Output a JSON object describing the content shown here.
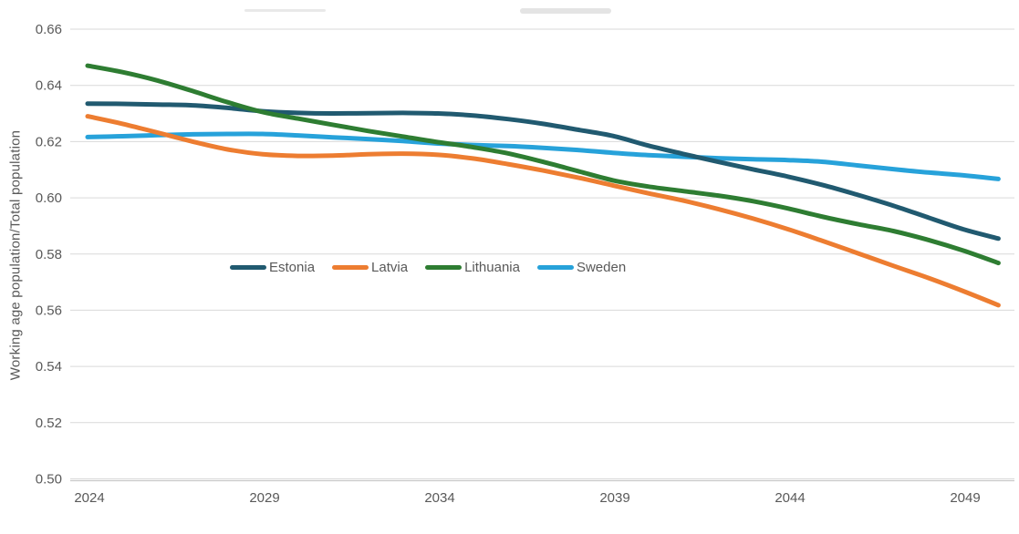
{
  "chart_data": {
    "type": "line",
    "title": "",
    "xlabel": "",
    "ylabel": "Working age population/Total population",
    "x": [
      2024,
      2025,
      2026,
      2027,
      2028,
      2029,
      2030,
      2031,
      2032,
      2033,
      2034,
      2035,
      2036,
      2037,
      2038,
      2039,
      2040,
      2041,
      2042,
      2043,
      2044,
      2045,
      2046,
      2047,
      2048,
      2049,
      2050
    ],
    "x_tick_labels": [
      "2024",
      "2029",
      "2034",
      "2039",
      "2044",
      "2049"
    ],
    "x_tick_years": [
      2024,
      2029,
      2034,
      2039,
      2044,
      2049
    ],
    "y_tick_labels": [
      "0.66",
      "0.64",
      "0.62",
      "0.60",
      "0.58",
      "0.56",
      "0.54",
      "0.52",
      "0.50"
    ],
    "ylim": [
      0.5,
      0.66
    ],
    "xlim": [
      2024,
      2050
    ],
    "grid": "horizontal",
    "legend_position": "inside-left-middle",
    "series": [
      {
        "name": "Estonia",
        "color": "#215A70",
        "values": [
          0.6335,
          0.6334,
          0.6332,
          0.6329,
          0.632,
          0.6308,
          0.6302,
          0.63,
          0.6301,
          0.6302,
          0.63,
          0.6293,
          0.628,
          0.6263,
          0.6242,
          0.622,
          0.6186,
          0.6156,
          0.6128,
          0.6101,
          0.6075,
          0.6045,
          0.601,
          0.5972,
          0.593,
          0.5888,
          0.5855
        ]
      },
      {
        "name": "Latvia",
        "color": "#ED7D31",
        "values": [
          0.629,
          0.6263,
          0.6232,
          0.62,
          0.6172,
          0.6155,
          0.6149,
          0.615,
          0.6155,
          0.6157,
          0.6153,
          0.614,
          0.612,
          0.6097,
          0.6072,
          0.6044,
          0.6016,
          0.599,
          0.596,
          0.5926,
          0.5888,
          0.5846,
          0.5802,
          0.5758,
          0.5715,
          0.5668,
          0.5618
        ]
      },
      {
        "name": "Lithuania",
        "color": "#2E7D32",
        "values": [
          0.647,
          0.6447,
          0.6417,
          0.638,
          0.634,
          0.6305,
          0.6282,
          0.626,
          0.6238,
          0.6218,
          0.6198,
          0.618,
          0.6158,
          0.6128,
          0.6095,
          0.6062,
          0.604,
          0.6024,
          0.6008,
          0.5988,
          0.5962,
          0.5932,
          0.5906,
          0.5882,
          0.585,
          0.5812,
          0.5768
        ]
      },
      {
        "name": "Sweden",
        "color": "#27A2DA",
        "values": [
          0.6216,
          0.6219,
          0.6223,
          0.6226,
          0.6227,
          0.6227,
          0.6222,
          0.6215,
          0.6209,
          0.6202,
          0.6193,
          0.6188,
          0.6184,
          0.6178,
          0.617,
          0.616,
          0.6152,
          0.6146,
          0.6141,
          0.6137,
          0.6134,
          0.6128,
          0.6115,
          0.6102,
          0.609,
          0.608,
          0.6067
        ]
      }
    ]
  },
  "style": {
    "grid_color": "#D9D9D9",
    "axis_line_color": "#C9C9C9",
    "tick_text_color": "#595959",
    "line_width": 5
  }
}
